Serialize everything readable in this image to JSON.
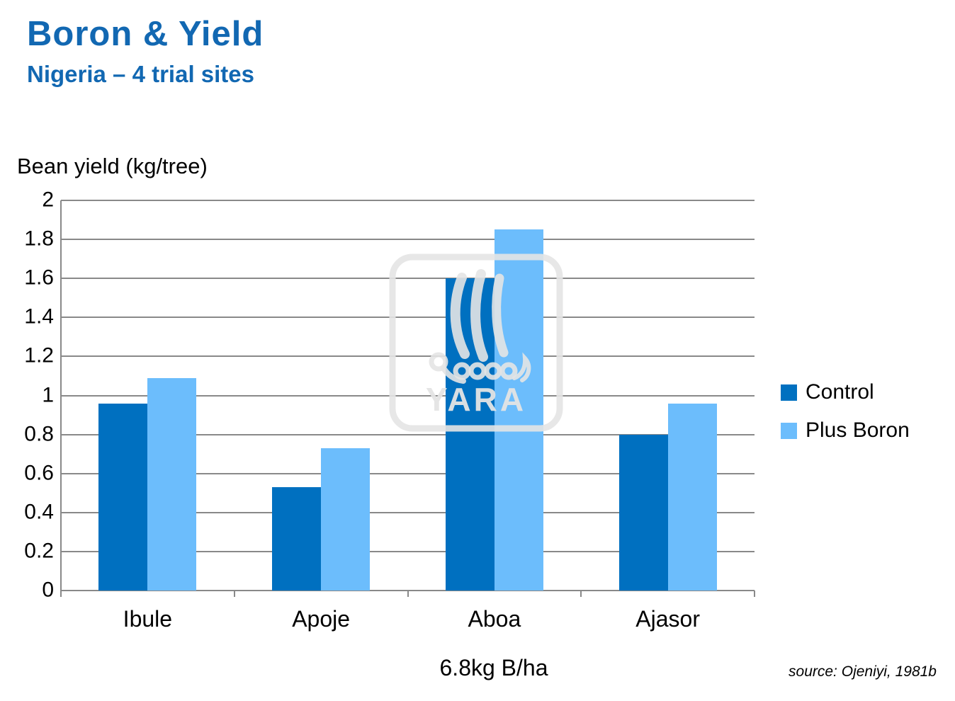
{
  "slide": {
    "title": "Boron & Yield",
    "subtitle": "Nigeria – 4 trial sites",
    "source_note": "source: Ojeniyi, 1981b",
    "watermark_text": "YARA"
  },
  "colors": {
    "accent_blue": "#1268B2",
    "gridline_gray": "#898989",
    "control_blue": "#0070C0",
    "plus_boron_blue": "#6CBDFC"
  },
  "chart_data": {
    "type": "bar",
    "title": "",
    "ylabel": "Bean yield (kg/tree)",
    "xlabel": "6.8kg B/ha",
    "categories": [
      "Ibule",
      "Apoje",
      "Aboa",
      "Ajasor"
    ],
    "series": [
      {
        "name": "Control",
        "color": "#0070C0",
        "values": [
          0.96,
          0.53,
          1.6,
          0.8
        ]
      },
      {
        "name": "Plus Boron",
        "color": "#6CBDFC",
        "values": [
          1.09,
          0.73,
          1.85,
          0.96
        ]
      }
    ],
    "ylim": [
      0,
      2
    ],
    "ytick_step": 0.2,
    "ytick_labels": [
      "2",
      "1.8",
      "1.6",
      "1.4",
      "1.2",
      "1",
      "0.8",
      "0.6",
      "0.4",
      "0.2",
      "0"
    ],
    "grid": true,
    "legend_position": "right"
  }
}
